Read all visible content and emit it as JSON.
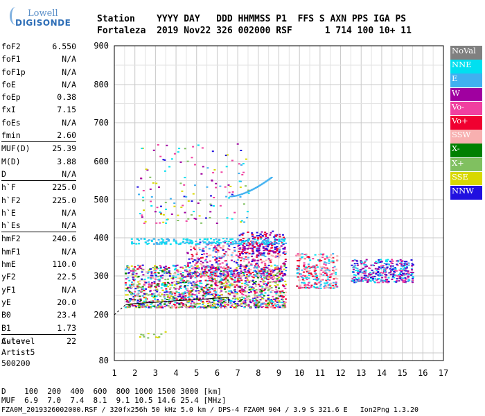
{
  "logo": {
    "line1": "Lowell",
    "line2": "DIGISONDE"
  },
  "header": {
    "line1": "Station    YYYY DAY   DDD HHMMSS P1  FFS S AXN PPS IGA PS",
    "line2": "Fortaleza  2019 Nov22 326 002000 RSF      1 714 100 10+ 11"
  },
  "params": [
    {
      "name": "foF2",
      "value": "6.550"
    },
    {
      "name": "foF1",
      "value": "N/A"
    },
    {
      "name": "foF1p",
      "value": "N/A"
    },
    {
      "name": "foE",
      "value": "N/A"
    },
    {
      "name": "foEp",
      "value": "0.38"
    },
    {
      "name": "fxI",
      "value": "7.15"
    },
    {
      "name": "foEs",
      "value": "N/A"
    },
    {
      "name": "fmin",
      "value": "2.60"
    },
    {
      "name": "MUF(D)",
      "value": "25.39",
      "sep": true
    },
    {
      "name": "M(D)",
      "value": "3.88"
    },
    {
      "name": "D",
      "value": "N/A"
    },
    {
      "name": "h`F",
      "value": "225.0",
      "sep": true
    },
    {
      "name": "h`F2",
      "value": "225.0"
    },
    {
      "name": "h`E",
      "value": "N/A"
    },
    {
      "name": "h`Es",
      "value": "N/A"
    },
    {
      "name": "hmF2",
      "value": "240.6",
      "sep": true
    },
    {
      "name": "hmF1",
      "value": "N/A"
    },
    {
      "name": "hmE",
      "value": "110.0"
    },
    {
      "name": "yF2",
      "value": "22.5"
    },
    {
      "name": "yF1",
      "value": "N/A"
    },
    {
      "name": "yE",
      "value": "20.0"
    },
    {
      "name": "B0",
      "value": "23.4"
    },
    {
      "name": "B1",
      "value": "1.73"
    },
    {
      "name": "C-level",
      "value": "22",
      "sep": true
    }
  ],
  "autoscale": {
    "line1": "Auto:",
    "line2": "Artist5",
    "line3": "500200"
  },
  "legend": [
    {
      "label": "NoVal",
      "color": "#808080"
    },
    {
      "label": "NNE",
      "color": "#00e0f0"
    },
    {
      "label": "E",
      "color": "#40b0f0"
    },
    {
      "label": "W",
      "color": "#a000a0"
    },
    {
      "label": "Vo-",
      "color": "#f040a0"
    },
    {
      "label": "Vo+",
      "color": "#f00030"
    },
    {
      "label": "SSW",
      "color": "#f8b0b0"
    },
    {
      "label": "X-",
      "color": "#008000"
    },
    {
      "label": "X+",
      "color": "#80c060"
    },
    {
      "label": "SSE",
      "color": "#d8d800"
    },
    {
      "label": "NNW",
      "color": "#2010e0"
    }
  ],
  "footer": {
    "line1": "D    100  200  400  600  800 1000 1500 3000 [km]",
    "line2": "MUF  6.9  7.0  7.4  8.1  9.1 10.5 14.6 25.4 [MHz]",
    "line3": "FZA0M_2019326002000.RSF / 320fx256h 50 kHz 5.0 km / DPS-4 FZA0M 904 / 3.9 S 321.6 E   Ion2Png 1.3.20"
  },
  "chart_data": {
    "type": "scatter",
    "xlim": [
      1,
      17
    ],
    "ylim": [
      80,
      900
    ],
    "xticks": [
      1,
      2,
      3,
      4,
      5,
      6,
      7,
      8,
      9,
      10,
      11,
      12,
      13,
      14,
      15,
      16,
      17
    ],
    "yticks": [
      80,
      200,
      300,
      400,
      500,
      600,
      700,
      800,
      900
    ],
    "grid": true,
    "trace": [
      [
        1.55,
        226
      ],
      [
        2,
        229
      ],
      [
        3,
        232
      ],
      [
        4,
        236
      ],
      [
        5,
        239
      ],
      [
        6,
        243
      ],
      [
        6.55,
        245
      ],
      [
        6.55,
        230
      ]
    ],
    "clusters": [
      {
        "x": [
          1.5,
          9.3
        ],
        "y": [
          220,
          330
        ],
        "colors": [
          "Vo+",
          "Vo-",
          "E",
          "NNE",
          "SSE",
          "X-",
          "W",
          "SSW",
          "X+",
          "NNW"
        ],
        "density": 1600
      },
      {
        "x": [
          4.5,
          9.3
        ],
        "y": [
          300,
          390
        ],
        "colors": [
          "Vo+",
          "Vo-",
          "W",
          "NNW",
          "SSW",
          "E"
        ],
        "density": 420
      },
      {
        "x": [
          7.0,
          9.3
        ],
        "y": [
          360,
          420
        ],
        "colors": [
          "NNW",
          "W",
          "Vo+"
        ],
        "density": 160
      },
      {
        "x": [
          9.8,
          11.8
        ],
        "y": [
          270,
          360
        ],
        "colors": [
          "SSW",
          "Vo-",
          "Vo+",
          "E",
          "NNE"
        ],
        "density": 260
      },
      {
        "x": [
          12.5,
          15.5
        ],
        "y": [
          285,
          345
        ],
        "colors": [
          "NNW",
          "W",
          "E",
          "NNE",
          "Vo-"
        ],
        "density": 360
      },
      {
        "x": [
          1.8,
          9.3
        ],
        "y": [
          385,
          400
        ],
        "colors": [
          "E",
          "NNE"
        ],
        "density": 200
      },
      {
        "x": [
          2,
          7.5
        ],
        "y": [
          440,
          650
        ],
        "colors": [
          "E",
          "NNE",
          "SSE",
          "X+",
          "NNW",
          "Vo-",
          "W"
        ],
        "density": 150
      },
      {
        "x": [
          2.2,
          3.5
        ],
        "y": [
          140,
          158
        ],
        "colors": [
          "SSE",
          "X+"
        ],
        "density": 12
      }
    ],
    "curve": {
      "x": [
        6.6,
        8.6
      ],
      "y": [
        510,
        560
      ],
      "color": "E"
    }
  }
}
